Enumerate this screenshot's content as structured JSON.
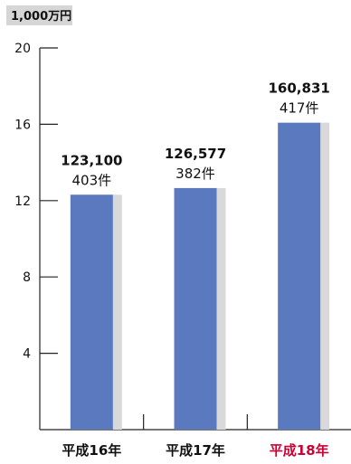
{
  "chart_data": {
    "type": "bar",
    "unit_label": "1,000万円",
    "categories": [
      "平成16年",
      "平成17年",
      "平成18年"
    ],
    "values": [
      12.31,
      12.6577,
      16.0831
    ],
    "value_labels": [
      "123,100",
      "126,577",
      "160,831"
    ],
    "count_labels": [
      "403件",
      "382件",
      "417件"
    ],
    "ylim": [
      0,
      20
    ],
    "yticks": [
      4,
      8,
      12,
      16,
      20
    ],
    "grid": false,
    "bar_color": "#5b79bf",
    "bar_shadow_color": "#d9d9d9",
    "category_colors": [
      "#111111",
      "#111111",
      "#cc0033"
    ]
  }
}
